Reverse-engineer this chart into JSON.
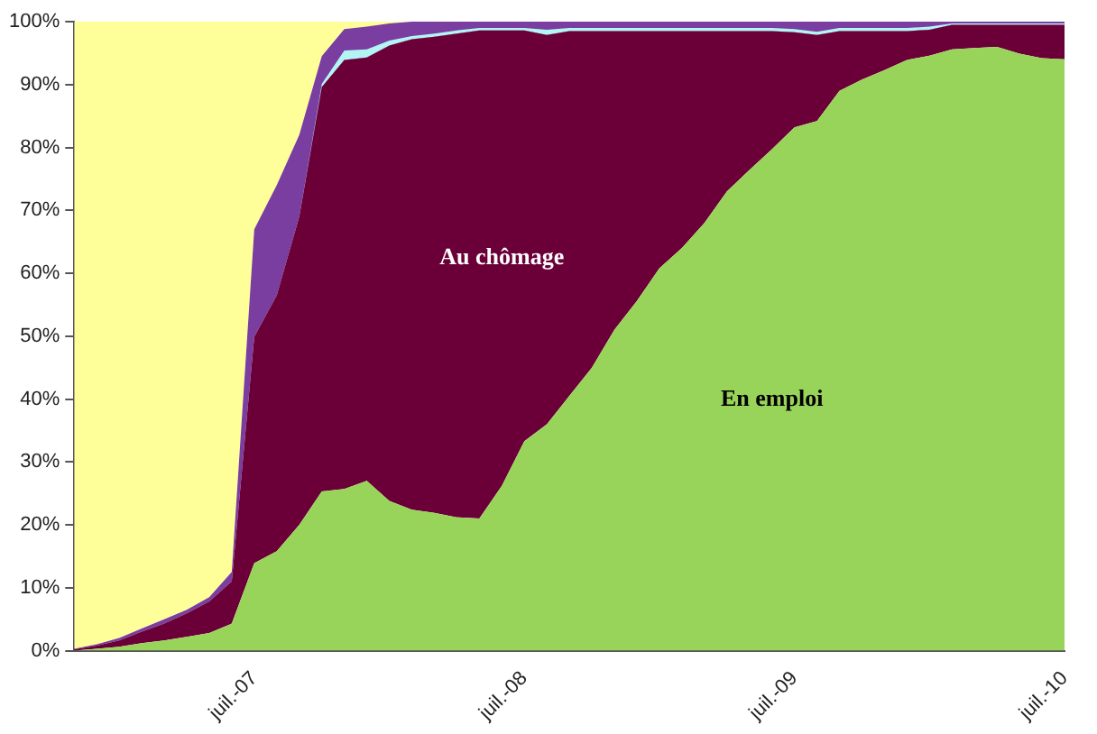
{
  "chart_data": {
    "type": "area",
    "stacked": true,
    "relative": false,
    "categories": [
      null,
      null,
      null,
      null,
      null,
      null,
      null,
      null,
      "juil.-07",
      null,
      null,
      null,
      null,
      null,
      null,
      null,
      null,
      null,
      null,
      null,
      "juil.-08",
      null,
      null,
      null,
      null,
      null,
      null,
      null,
      null,
      null,
      null,
      null,
      "juil.-09",
      null,
      null,
      null,
      null,
      null,
      null,
      null,
      null,
      null,
      null,
      null,
      "juil.-10"
    ],
    "series": [
      {
        "name": "En emploi",
        "color": "#99d45a",
        "values": [
          0,
          0.3,
          0.6,
          1.2,
          1.6,
          2.2,
          2.8,
          4.3,
          13.9,
          15.8,
          20,
          25.3,
          25.7,
          27,
          23.8,
          22.4,
          21.9,
          21.2,
          21,
          26.2,
          33.3,
          36,
          40.5,
          45,
          51,
          55.6,
          60.8,
          64,
          68,
          73,
          76.4,
          79.7,
          83.2,
          84.2,
          89,
          90.8,
          92.3,
          93.9,
          94.6,
          95.6,
          95.8,
          96,
          94.9,
          94.2,
          94
        ]
      },
      {
        "name": "Au chômage",
        "color": "#6b0038",
        "values": [
          0.2,
          0.5,
          1.0,
          1.8,
          2.7,
          3.7,
          5.0,
          6.7,
          36.0,
          40.7,
          49,
          64.3,
          68.2,
          67.3,
          72.4,
          74.8,
          75.7,
          76.9,
          77.6,
          72.4,
          65.3,
          61.9,
          58,
          53.5,
          47.5,
          42.9,
          37.7,
          34.5,
          30.5,
          25.5,
          22.1,
          18.8,
          15.1,
          13.7,
          9.5,
          7.7,
          6.2,
          4.6,
          4.1,
          3.9,
          3.7,
          3.5,
          4.6,
          5.3,
          5.5
        ]
      },
      {
        "color": "#b3f5f5",
        "values": [
          null,
          null,
          null,
          null,
          null,
          null,
          null,
          null,
          null,
          null,
          0,
          0.5,
          1.5,
          1.3,
          0.8,
          0.5,
          0.5,
          0.5,
          0.4,
          0.4,
          0.4,
          0.8,
          0.5,
          0.5,
          0.5,
          0.5,
          0.5,
          0.5,
          0.5,
          0.5,
          0.5,
          0.5,
          0.5,
          0.5,
          0.5,
          0.5,
          0.5,
          0.5,
          0.5,
          0.2,
          0.2,
          0.2,
          0.2,
          0.2,
          0.2
        ]
      },
      {
        "color": "#7a3da0",
        "values": [
          0.1,
          0.2,
          0.4,
          0.5,
          0.7,
          0.6,
          0.7,
          1.5,
          17.1,
          17.5,
          13,
          4.4,
          3.4,
          3.6,
          2.7,
          2.3,
          1.9,
          1.4,
          1.0,
          1.0,
          1.0,
          1.3,
          1.0,
          1.0,
          1.0,
          1.0,
          1.0,
          1.0,
          1.0,
          1.0,
          1.0,
          1.0,
          1.2,
          1.6,
          1.0,
          1.0,
          1.0,
          1.0,
          0.8,
          0.3,
          0.3,
          0.3,
          0.3,
          0.3,
          0.3
        ]
      },
      {
        "color": "#ffff99",
        "values": [
          99.7,
          99,
          98,
          96.5,
          95,
          93.5,
          91.5,
          87.5,
          33,
          26,
          18,
          5.5,
          1.2,
          0.8,
          0.3,
          0,
          null,
          null,
          null,
          null,
          null,
          null,
          null,
          null,
          null,
          null,
          null,
          null,
          null,
          null,
          null,
          null,
          null,
          null,
          null,
          null,
          null,
          null,
          null,
          null,
          null,
          null,
          null,
          null,
          null
        ]
      }
    ],
    "ylim": [
      0,
      100
    ],
    "yticks": [
      {
        "value": 0,
        "label": "0%"
      },
      {
        "value": 10,
        "label": "10%"
      },
      {
        "value": 20,
        "label": "20%"
      },
      {
        "value": 30,
        "label": "30%"
      },
      {
        "value": 40,
        "label": "40%"
      },
      {
        "value": 50,
        "label": "50%"
      },
      {
        "value": 60,
        "label": "60%"
      },
      {
        "value": 70,
        "label": "70%"
      },
      {
        "value": 80,
        "label": "80%"
      },
      {
        "value": 90,
        "label": "90%"
      },
      {
        "value": 100,
        "label": "100%"
      }
    ],
    "grid": false,
    "legend": false,
    "marker": "none"
  }
}
